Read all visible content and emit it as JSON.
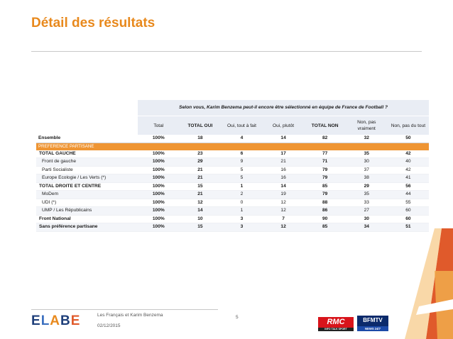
{
  "title": "Détail des résultats",
  "question": "Selon vous, Karim Benzema peut-il encore être sélectionné en équipe de France de Football ?",
  "columns": [
    "Total",
    "TOTAL OUI",
    "Oui, tout à fait",
    "Oui, plutôt",
    "TOTAL NON",
    "Non, pas vraiment",
    "Non, pas du tout"
  ],
  "ensemble": {
    "label": "Ensemble",
    "values": [
      "100%",
      "18",
      "4",
      "14",
      "82",
      "32",
      "50"
    ]
  },
  "section_label": "PREFERENCE PARTISANE",
  "rows": [
    {
      "label": "TOTAL GAUCHE",
      "values": [
        "100%",
        "23",
        "6",
        "17",
        "77",
        "35",
        "42"
      ]
    },
    {
      "label": "Front de gauche",
      "values": [
        "100%",
        "29",
        "9",
        "21",
        "71",
        "30",
        "40"
      ]
    },
    {
      "label": "Parti Socialiste",
      "values": [
        "100%",
        "21",
        "5",
        "16",
        "79",
        "37",
        "42"
      ]
    },
    {
      "label": "Europe Ecologie / Les Verts (*)",
      "values": [
        "100%",
        "21",
        "5",
        "16",
        "79",
        "38",
        "41"
      ]
    },
    {
      "label": "TOTAL DROITE ET CENTRE",
      "values": [
        "100%",
        "15",
        "1",
        "14",
        "85",
        "29",
        "56"
      ]
    },
    {
      "label": "MoDem",
      "values": [
        "100%",
        "21",
        "2",
        "19",
        "79",
        "35",
        "44"
      ]
    },
    {
      "label": "UDI (*)",
      "values": [
        "100%",
        "12",
        "0",
        "12",
        "88",
        "33",
        "55"
      ]
    },
    {
      "label": "UMP / Les Républicains",
      "values": [
        "100%",
        "14",
        "1",
        "12",
        "86",
        "27",
        "60"
      ]
    },
    {
      "label": "Front National",
      "values": [
        "100%",
        "10",
        "3",
        "7",
        "90",
        "30",
        "60"
      ]
    },
    {
      "label": "Sans préférence partisane",
      "values": [
        "100%",
        "15",
        "3",
        "12",
        "85",
        "34",
        "51"
      ]
    }
  ],
  "footer": {
    "logo_text": "ELABE",
    "line1": "Les Français et Karim Benzema",
    "line2": "02/12/2015",
    "page_number": "5",
    "rmc": "RMC",
    "rmc_sub": "INFO TALK SPORT",
    "bfm": "BFMTV",
    "bfm_sub": "NEWS 24/7"
  },
  "colors": {
    "accent": "#e8891d",
    "section_band": "#ef9533",
    "header_bg": "#e9edf4"
  }
}
